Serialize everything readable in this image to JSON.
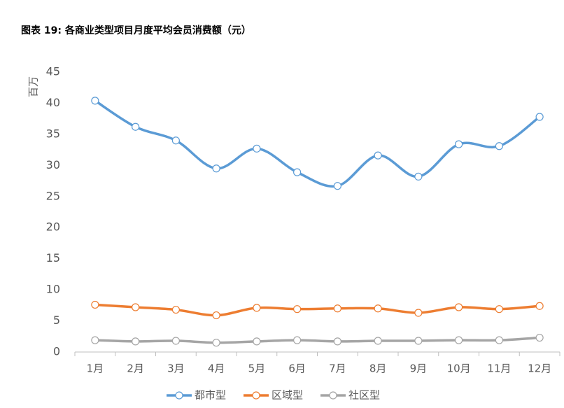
{
  "chart_data": {
    "type": "line",
    "title": "图表 19: 各商业类型项目月度平均会员消费额（元）",
    "y_label": "百万",
    "categories": [
      "1月",
      "2月",
      "3月",
      "4月",
      "5月",
      "6月",
      "7月",
      "8月",
      "9月",
      "10月",
      "11月",
      "12月"
    ],
    "series": [
      {
        "name": "都市型",
        "color": "#5b9bd5",
        "values": [
          40.4,
          36.2,
          34.0,
          29.5,
          32.7,
          28.9,
          26.7,
          31.6,
          28.2,
          33.4,
          33.1,
          37.8
        ]
      },
      {
        "name": "区域型",
        "color": "#ed7d31",
        "values": [
          7.6,
          7.2,
          6.8,
          5.9,
          7.1,
          6.9,
          7.0,
          7.0,
          6.3,
          7.2,
          6.9,
          7.4
        ]
      },
      {
        "name": "社区型",
        "color": "#a5a5a5",
        "values": [
          1.9,
          1.7,
          1.8,
          1.5,
          1.7,
          1.9,
          1.7,
          1.8,
          1.8,
          1.9,
          1.9,
          2.3
        ]
      }
    ],
    "ylim": [
      0,
      45
    ],
    "yticks": [
      0,
      5,
      10,
      15,
      20,
      25,
      30,
      35,
      40,
      45
    ],
    "grid": false,
    "smooth": true,
    "legend": "bottom"
  }
}
